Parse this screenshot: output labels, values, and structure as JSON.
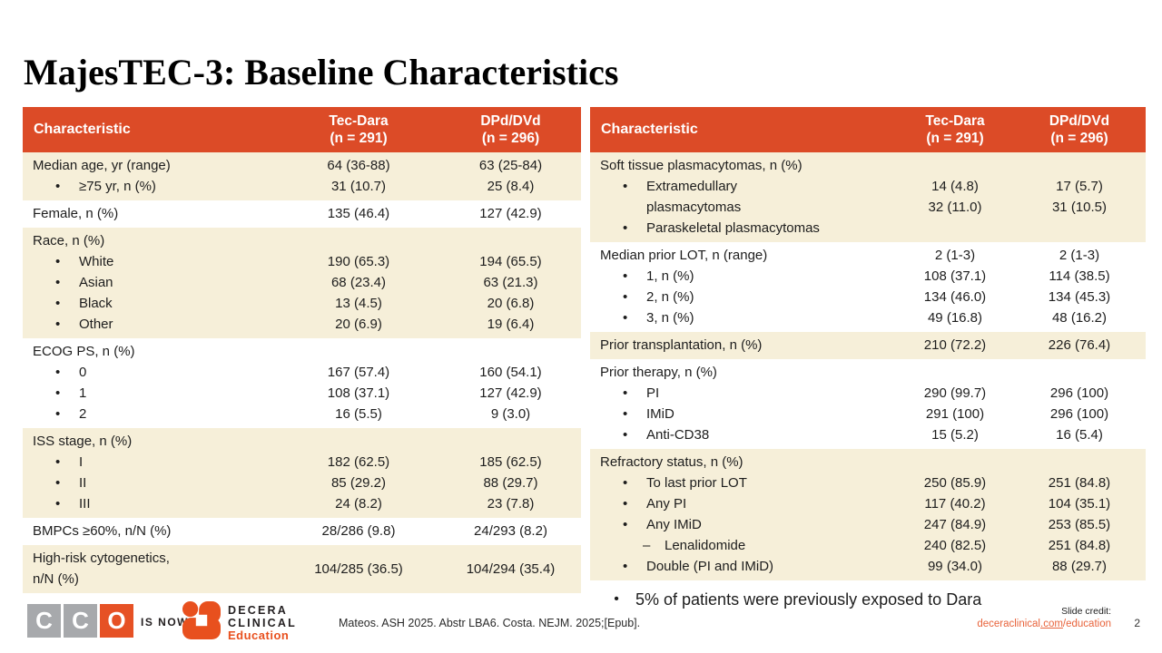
{
  "title": "MajesTEC-3: Baseline Characteristics",
  "colors": {
    "header_orange": "#DC4B27",
    "row_cream": "#F6EFD9",
    "accent_orange": "#E8501E",
    "link_orange": "#E8633B",
    "cco_gray": "#A7A9AC",
    "cco_orange": "#E65125"
  },
  "tables": {
    "left": {
      "header": {
        "label": "Characteristic",
        "col1": [
          "Tec-Dara",
          "(n = 291)"
        ],
        "col2": [
          "DPd/DVd",
          "(n = 296)"
        ]
      },
      "rows": [
        {
          "bg": "cream",
          "type": "lines",
          "lines": [
            {
              "t": "Median age, yr (range)",
              "ind": 0,
              "v1": "64 (36-88)",
              "v2": "63 (25-84)"
            },
            {
              "t": "≥75 yr, n (%)",
              "ind": 1,
              "v1": "31 (10.7)",
              "v2": "25 (8.4)"
            }
          ]
        },
        {
          "bg": "white",
          "type": "lines",
          "lines": [
            {
              "t": "Female, n (%)",
              "ind": 0,
              "v1": "135 (46.4)",
              "v2": "127 (42.9)"
            }
          ]
        },
        {
          "bg": "cream",
          "type": "lines",
          "lines": [
            {
              "t": "Race, n (%)",
              "ind": 0
            },
            {
              "t": "White",
              "ind": 1,
              "v1": "190 (65.3)",
              "v2": "194 (65.5)"
            },
            {
              "t": "Asian",
              "ind": 1,
              "v1": "68 (23.4)",
              "v2": "63 (21.3)"
            },
            {
              "t": "Black",
              "ind": 1,
              "v1": "13 (4.5)",
              "v2": "20 (6.8)"
            },
            {
              "t": "Other",
              "ind": 1,
              "v1": "20 (6.9)",
              "v2": "19 (6.4)"
            }
          ]
        },
        {
          "bg": "white",
          "type": "lines",
          "lines": [
            {
              "t": "ECOG PS, n (%)",
              "ind": 0
            },
            {
              "t": "0",
              "ind": 1,
              "v1": "167 (57.4)",
              "v2": "160 (54.1)"
            },
            {
              "t": "1",
              "ind": 1,
              "v1": "108 (37.1)",
              "v2": "127 (42.9)"
            },
            {
              "t": "2",
              "ind": 1,
              "v1": "16 (5.5)",
              "v2": "9 (3.0)"
            }
          ]
        },
        {
          "bg": "cream",
          "type": "lines",
          "lines": [
            {
              "t": "ISS stage, n (%)",
              "ind": 0
            },
            {
              "t": "I",
              "ind": 1,
              "v1": "182 (62.5)",
              "v2": "185 (62.5)"
            },
            {
              "t": "II",
              "ind": 1,
              "v1": "85 (29.2)",
              "v2": "88 (29.7)"
            },
            {
              "t": "III",
              "ind": 1,
              "v1": "24 (8.2)",
              "v2": "23 (7.8)"
            }
          ]
        },
        {
          "bg": "white",
          "type": "lines",
          "lines": [
            {
              "t": "BMPCs ≥60%, n/N (%)",
              "ind": 0,
              "v1": "28/286 (9.8)",
              "v2": "24/293 (8.2)"
            }
          ]
        },
        {
          "bg": "cream",
          "type": "block",
          "label_lines": [
            {
              "t": "High-risk cytogenetics,",
              "ind": 0
            },
            {
              "t": "n/N (%)",
              "ind": 0
            }
          ],
          "v1": [
            "104/285 (36.5)"
          ],
          "v2": [
            "104/294 (35.4)"
          ]
        }
      ]
    },
    "right": {
      "header": {
        "label": "Characteristic",
        "col1": [
          "Tec-Dara",
          "(n = 291)"
        ],
        "col2": [
          "DPd/DVd",
          "(n = 296)"
        ]
      },
      "rows": [
        {
          "bg": "cream",
          "type": "block",
          "label_lines": [
            {
              "t": "Soft tissue plasmacytomas, n (%)",
              "ind": 0
            },
            {
              "t": "Extramedullary",
              "ind": 1
            },
            {
              "t": "plasmacytomas",
              "ind": 2
            },
            {
              "t": "Paraskeletal plasmacytomas",
              "ind": 1
            }
          ],
          "v1": [
            "14 (4.8)",
            "32 (11.0)"
          ],
          "v2": [
            "17 (5.7)",
            "31 (10.5)"
          ]
        },
        {
          "bg": "white",
          "type": "lines",
          "lines": [
            {
              "t": "Median prior LOT, n (range)",
              "ind": 0,
              "v1": "2 (1-3)",
              "v2": "2 (1-3)"
            },
            {
              "t": "1, n (%)",
              "ind": 1,
              "v1": "108 (37.1)",
              "v2": "114 (38.5)"
            },
            {
              "t": "2, n (%)",
              "ind": 1,
              "v1": "134 (46.0)",
              "v2": "134 (45.3)"
            },
            {
              "t": "3, n (%)",
              "ind": 1,
              "v1": "49 (16.8)",
              "v2": "48 (16.2)"
            }
          ]
        },
        {
          "bg": "cream",
          "type": "lines",
          "lines": [
            {
              "t": "Prior transplantation, n (%)",
              "ind": 0,
              "v1": "210 (72.2)",
              "v2": "226 (76.4)"
            }
          ]
        },
        {
          "bg": "white",
          "type": "lines",
          "lines": [
            {
              "t": "Prior therapy, n (%)",
              "ind": 0
            },
            {
              "t": "PI",
              "ind": 1,
              "v1": "290 (99.7)",
              "v2": "296 (100)"
            },
            {
              "t": "IMiD",
              "ind": 1,
              "v1": "291 (100)",
              "v2": "296 (100)"
            },
            {
              "t": "Anti-CD38",
              "ind": 1,
              "v1": "15 (5.2)",
              "v2": "16 (5.4)"
            }
          ]
        },
        {
          "bg": "cream",
          "type": "lines",
          "lines": [
            {
              "t": "Refractory status, n (%)",
              "ind": 0
            },
            {
              "t": "To last prior LOT",
              "ind": 1,
              "v1": "250 (85.9)",
              "v2": "251 (84.8)"
            },
            {
              "t": "Any PI",
              "ind": 1,
              "v1": "117 (40.2)",
              "v2": "104 (35.1)"
            },
            {
              "t": "Any IMiD",
              "ind": 1,
              "v1": "247 (84.9)",
              "v2": "253 (85.5)"
            },
            {
              "t": "Lenalidomide",
              "ind": 3,
              "v1": "240 (82.5)",
              "v2": "251 (84.8)"
            },
            {
              "t": "Double (PI and IMiD)",
              "ind": 1,
              "v1": "99 (34.0)",
              "v2": "88 (29.7)"
            }
          ]
        }
      ]
    }
  },
  "footnote": "5% of patients were previously exposed to Dara",
  "footer": {
    "cco_letters": [
      "C",
      "C",
      "O"
    ],
    "is_now": "IS NOW",
    "decera_lines": [
      "DECERA",
      "CLINICAL",
      "Education"
    ],
    "citation": "Mateos. ASH 2025. Abstr LBA6. Costa. NEJM. 2025;[Epub].",
    "slide_credit_label": "Slide credit:",
    "link": {
      "pre": "deceraclinical",
      "mid": ".com",
      "post": "/education"
    },
    "page_number": "2"
  }
}
